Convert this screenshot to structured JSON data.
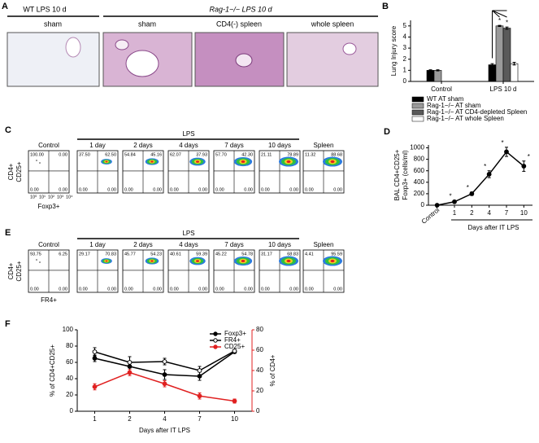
{
  "figure": {
    "panel_labels": [
      "A",
      "B",
      "C",
      "D",
      "E",
      "F"
    ],
    "histology": {
      "wt_header": "WT LPS 10 d",
      "rag_header": "Rag-1−/− LPS 10 d",
      "image_labels": [
        "sham",
        "sham",
        "CD4(-) spleen",
        "whole spleen"
      ]
    },
    "flow_c": {
      "group_label": "LPS",
      "y_label": [
        "CD4+",
        "CD25+"
      ],
      "x_label": "Foxp3+",
      "axis_ticks": [
        "10⁰",
        "10¹",
        "10²",
        "10³",
        "10⁴"
      ],
      "plots": [
        {
          "title": "Control",
          "quadrants": [
            "100.00",
            "0.00",
            "0.00",
            "0.00"
          ]
        },
        {
          "title": "1 day",
          "quadrants": [
            "37.50",
            "62.50",
            "0.00",
            "0.00"
          ]
        },
        {
          "title": "2 days",
          "quadrants": [
            "54.84",
            "45.16",
            "0.00",
            "0.00"
          ]
        },
        {
          "title": "4 days",
          "quadrants": [
            "62.07",
            "37.93",
            "0.00",
            "0.00"
          ]
        },
        {
          "title": "7 days",
          "quadrants": [
            "57.70",
            "42.30",
            "0.00",
            "0.00"
          ]
        },
        {
          "title": "10 days",
          "quadrants": [
            "21.11",
            "78.89",
            "0.00",
            "0.00"
          ]
        },
        {
          "title": "Spleen",
          "quadrants": [
            "11.32",
            "88.68",
            "0.00",
            "0.00"
          ]
        }
      ]
    },
    "flow_e": {
      "group_label": "LPS",
      "y_label": [
        "CD4+",
        "CD25+"
      ],
      "x_label": "FR4+",
      "plots": [
        {
          "title": "Control",
          "quadrants": [
            "93.75",
            "6.25",
            "0.00",
            "0.00"
          ]
        },
        {
          "title": "1 day",
          "quadrants": [
            "29.17",
            "70.83",
            "0.00",
            "0.00"
          ]
        },
        {
          "title": "2 days",
          "quadrants": [
            "45.77",
            "54.23",
            "0.00",
            "0.00"
          ]
        },
        {
          "title": "4 days",
          "quadrants": [
            "40.61",
            "59.39",
            "0.00",
            "0.00"
          ]
        },
        {
          "title": "7 days",
          "quadrants": [
            "45.22",
            "54.78",
            "0.00",
            "0.00"
          ]
        },
        {
          "title": "10 days",
          "quadrants": [
            "31.17",
            "68.83",
            "0.00",
            "0.00"
          ]
        },
        {
          "title": "Spleen",
          "quadrants": [
            "4.41",
            "95.59",
            "0.00",
            "0.00"
          ]
        }
      ]
    }
  },
  "chart_data": [
    {
      "type": "bar",
      "y_label": "Lung Injury score",
      "categories": [
        "Control",
        "LPS 10 d"
      ],
      "ylim": [
        0,
        5.5
      ],
      "yticks": [
        0,
        1,
        2,
        3,
        4,
        5
      ],
      "annotations": [
        "*",
        "*"
      ],
      "series": [
        {
          "name": "WT AT sham",
          "color": "#000000",
          "values": [
            1.0,
            1.5
          ],
          "errors": [
            0.05,
            0.1
          ]
        },
        {
          "name": "Rag-1−/− AT sham",
          "color": "#9a9a9a",
          "values": [
            1.0,
            5.0
          ],
          "errors": [
            0.05,
            0.05
          ]
        },
        {
          "name": "Rag-1−/− AT CD4-depleted Spleen",
          "color": "#5a5a5a",
          "values": [
            null,
            4.8
          ],
          "errors": [
            null,
            0.1
          ]
        },
        {
          "name": "Rag-1−/− AT whole Spleen",
          "color": "#ffffff",
          "values": [
            null,
            1.6
          ],
          "errors": [
            null,
            0.12
          ]
        }
      ]
    },
    {
      "type": "line",
      "y_label": [
        "BAL CD4+CD25+",
        "Foxp3+ (cells/ml)"
      ],
      "x_label": "Days after IT LPS",
      "categories": [
        "Control",
        "1",
        "2",
        "4",
        "7",
        "10"
      ],
      "ylim": [
        0,
        1050
      ],
      "yticks": [
        0,
        200,
        400,
        600,
        800,
        1000
      ],
      "annotations": [
        null,
        "*",
        "*",
        "*",
        "*",
        "*"
      ],
      "series": [
        {
          "color": "#000000",
          "values": [
            0,
            60,
            200,
            540,
            930,
            680
          ],
          "errors": [
            5,
            20,
            30,
            60,
            80,
            90
          ]
        }
      ]
    },
    {
      "type": "line",
      "y_label": "% of CD4+CD25+",
      "y2_label": "% of CD4+",
      "x_label": "Days after IT LPS",
      "categories": [
        "1",
        "2",
        "4",
        "7",
        "10"
      ],
      "ylim": [
        0,
        100
      ],
      "yticks": [
        0,
        20,
        40,
        60,
        80,
        100
      ],
      "y2lim": [
        0,
        80
      ],
      "y2ticks": [
        0,
        20,
        40,
        60,
        80
      ],
      "y2color": "#e02020",
      "series": [
        {
          "name": "Foxp3+",
          "color": "#000000",
          "marker": "filled",
          "values": [
            65,
            55,
            45,
            43,
            73
          ],
          "errors": [
            4,
            6,
            6,
            5,
            2
          ]
        },
        {
          "name": "FR4+",
          "color": "#000000",
          "marker": "open",
          "values": [
            73,
            60,
            61,
            50,
            74
          ],
          "errors": [
            5,
            7,
            4,
            5,
            2
          ]
        },
        {
          "name": "CD25+",
          "color": "#e02020",
          "marker": "filled",
          "axis": "y2",
          "values": [
            24,
            38,
            27,
            15,
            10
          ],
          "errors": [
            3,
            3,
            3,
            3,
            2
          ]
        }
      ]
    }
  ]
}
